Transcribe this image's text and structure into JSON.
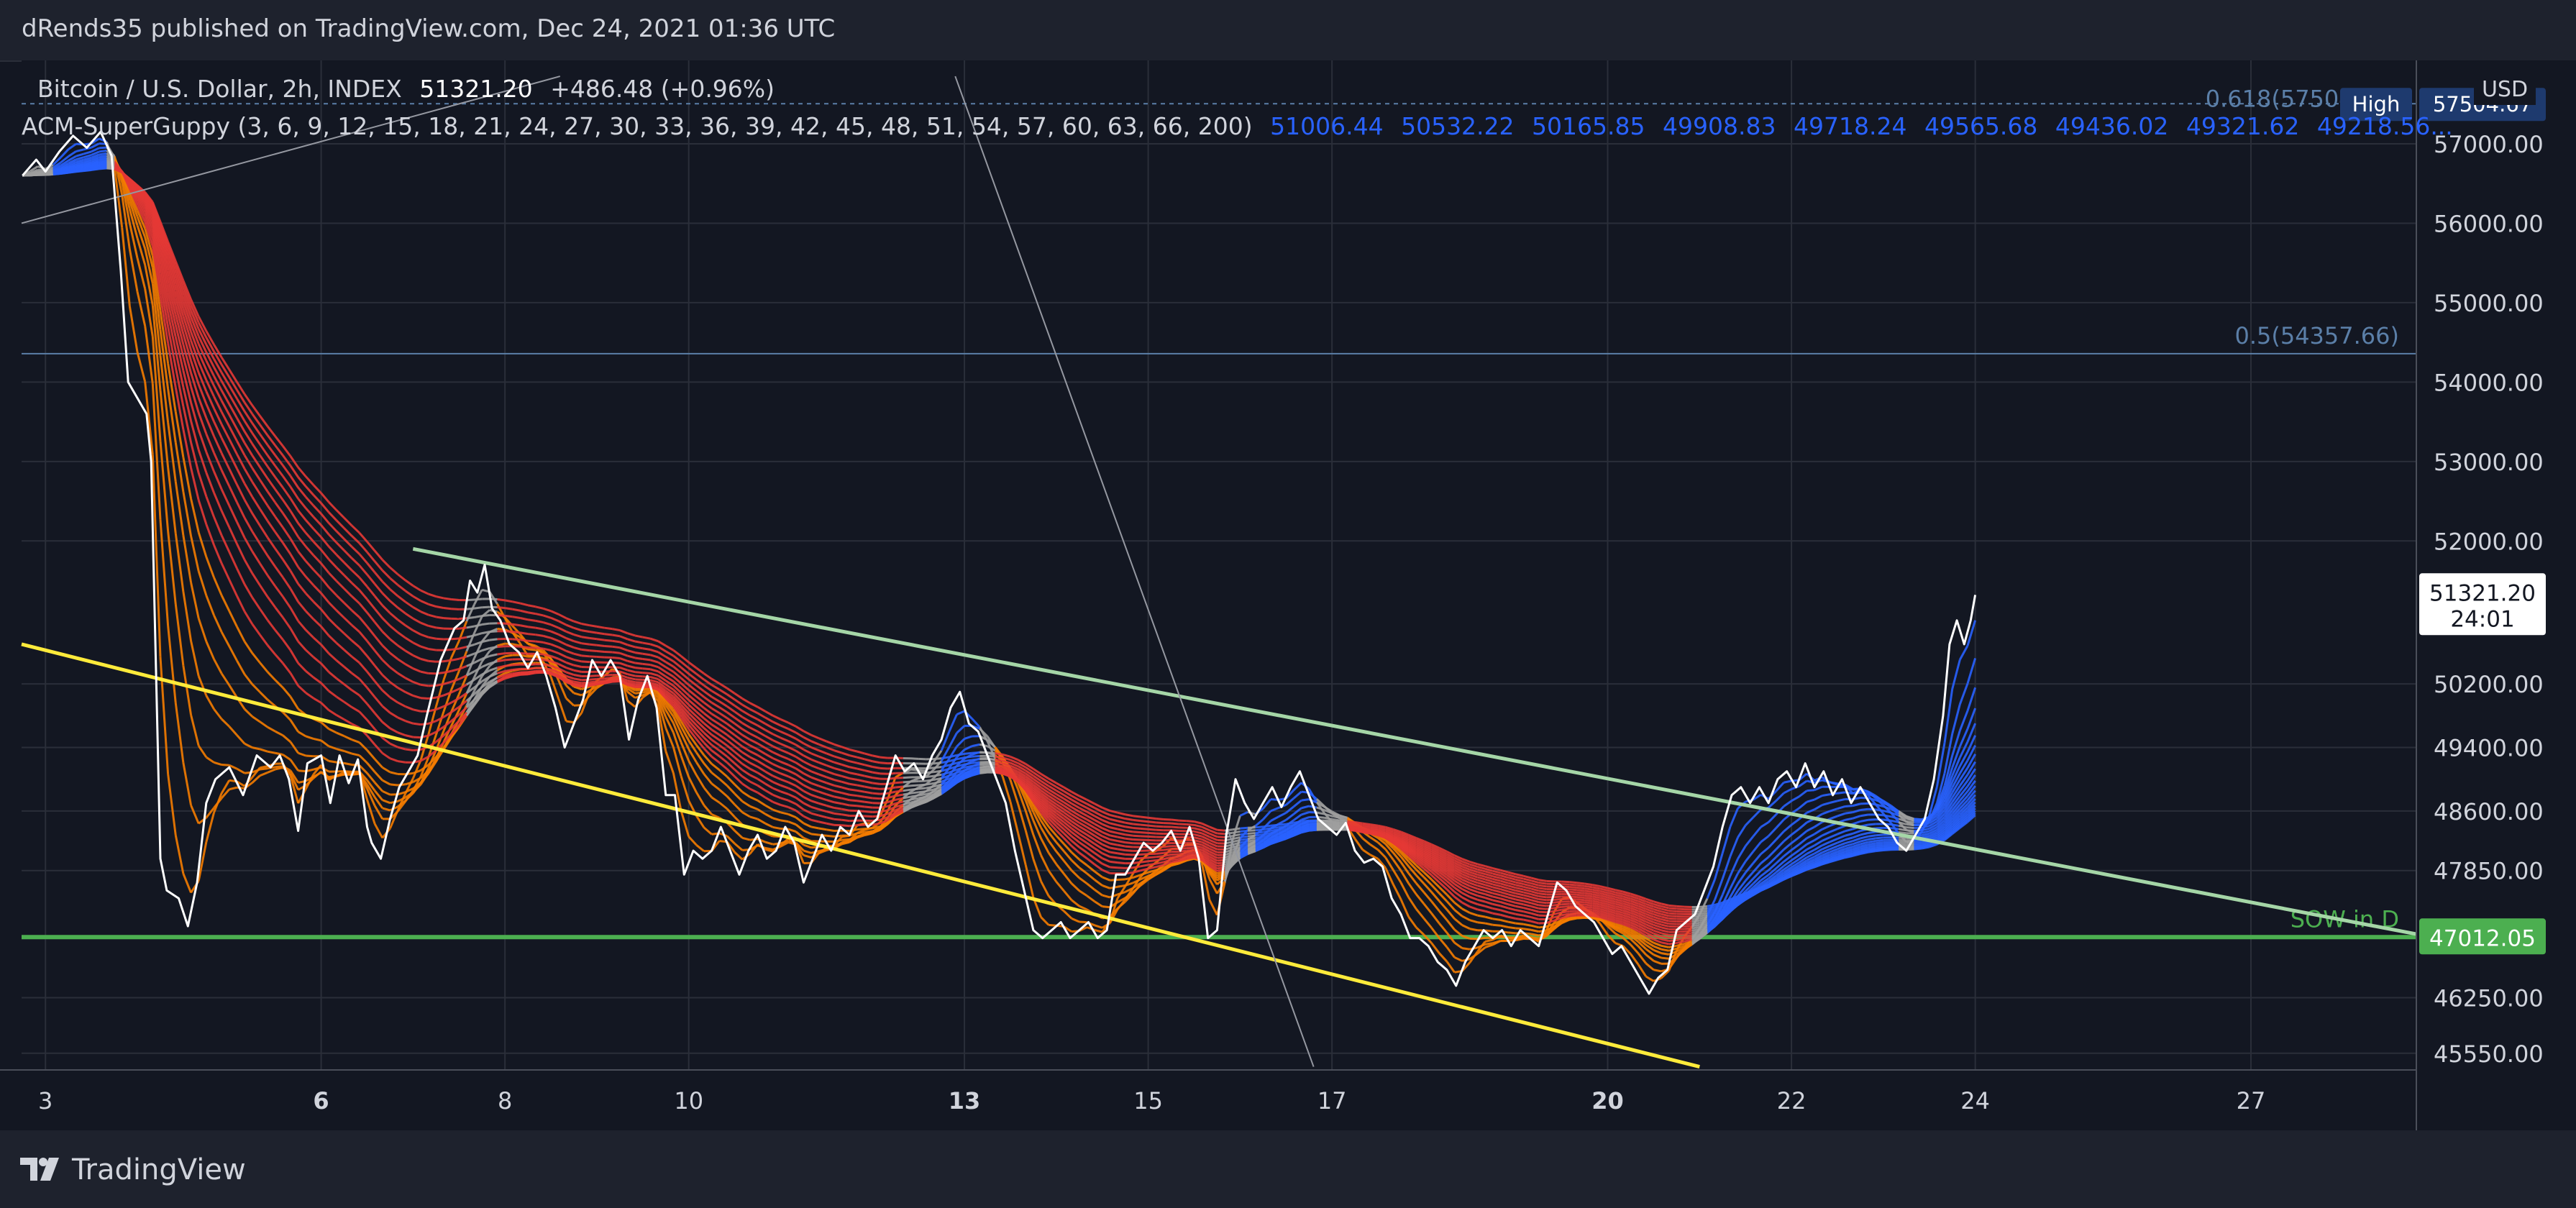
{
  "header": {
    "published": "dRends35 published on TradingView.com, Dec 24, 2021 01:36 UTC"
  },
  "legend": {
    "symbol": "Bitcoin / U.S. Dollar, 2h, INDEX",
    "last": "51321.20",
    "change": "+486.48 (+0.96%)",
    "indicator": "ACM-SuperGuppy (3, 6, 9, 12, 15, 18, 21, 24, 27, 30, 33, 36, 39, 42, 45, 48, 51, 54, 57, 60, 63, 66, 200)",
    "guppy_values": [
      "51006.44",
      "50532.22",
      "50165.85",
      "49908.83",
      "49718.24",
      "49565.68",
      "49436.02",
      "49321.62",
      "49218.56..."
    ]
  },
  "footer": {
    "brand": "TradingView"
  },
  "colors": {
    "background": "#131722",
    "grid": "#2a2e39",
    "price": "#ffffff",
    "support": "#4caf50",
    "resistance": "#a5d6a7",
    "lower_trend": "#ffeb3b",
    "fib": "#5b7fa8",
    "ribbon_bear": "#e53935",
    "ribbon_fast": "#f57c00",
    "ribbon_neutral": "#9e9e9e",
    "ribbon_bull": "#2962ff"
  },
  "chart_data": {
    "type": "line",
    "xlabel": "",
    "ylabel": "",
    "currency": "USD",
    "x_ticks": [
      {
        "day": 3,
        "label": "3",
        "bold": false
      },
      {
        "day": 6,
        "label": "6",
        "bold": true
      },
      {
        "day": 8,
        "label": "8",
        "bold": false
      },
      {
        "day": 10,
        "label": "10",
        "bold": false
      },
      {
        "day": 13,
        "label": "13",
        "bold": true
      },
      {
        "day": 15,
        "label": "15",
        "bold": false
      },
      {
        "day": 17,
        "label": "17",
        "bold": false
      },
      {
        "day": 20,
        "label": "20",
        "bold": true
      },
      {
        "day": 22,
        "label": "22",
        "bold": false
      },
      {
        "day": 24,
        "label": "24",
        "bold": false
      },
      {
        "day": 27,
        "label": "27",
        "bold": false
      }
    ],
    "y_ticks": [
      45550,
      46250,
      47850,
      48600,
      49400,
      50200,
      52000,
      53000,
      54000,
      55000,
      56000,
      57000
    ],
    "xlim": [
      2.74,
      28.8
    ],
    "ylim": [
      45340,
      58050
    ],
    "price_series": [
      [
        2.75,
        56600
      ],
      [
        2.9,
        56800
      ],
      [
        3.0,
        56650
      ],
      [
        3.15,
        56900
      ],
      [
        3.3,
        57100
      ],
      [
        3.45,
        56950
      ],
      [
        3.6,
        57150
      ],
      [
        3.72,
        56850
      ],
      [
        3.82,
        55400
      ],
      [
        3.9,
        54000
      ],
      [
        4.0,
        53800
      ],
      [
        4.1,
        53600
      ],
      [
        4.15,
        53000
      ],
      [
        4.25,
        48000
      ],
      [
        4.32,
        47600
      ],
      [
        4.45,
        47500
      ],
      [
        4.55,
        47150
      ],
      [
        4.65,
        47700
      ],
      [
        4.75,
        48700
      ],
      [
        4.85,
        49000
      ],
      [
        5.0,
        49150
      ],
      [
        5.15,
        48800
      ],
      [
        5.3,
        49300
      ],
      [
        5.45,
        49150
      ],
      [
        5.55,
        49300
      ],
      [
        5.65,
        49000
      ],
      [
        5.75,
        48350
      ],
      [
        5.85,
        49200
      ],
      [
        6.0,
        49300
      ],
      [
        6.1,
        48700
      ],
      [
        6.2,
        49300
      ],
      [
        6.3,
        48950
      ],
      [
        6.4,
        49250
      ],
      [
        6.5,
        48400
      ],
      [
        6.55,
        48200
      ],
      [
        6.65,
        48000
      ],
      [
        6.75,
        48500
      ],
      [
        6.85,
        48900
      ],
      [
        6.95,
        49100
      ],
      [
        7.05,
        49300
      ],
      [
        7.15,
        49800
      ],
      [
        7.3,
        50500
      ],
      [
        7.45,
        50900
      ],
      [
        7.55,
        51000
      ],
      [
        7.62,
        51500
      ],
      [
        7.7,
        51350
      ],
      [
        7.78,
        51700
      ],
      [
        7.86,
        51150
      ],
      [
        7.95,
        51000
      ],
      [
        8.05,
        50700
      ],
      [
        8.15,
        50600
      ],
      [
        8.25,
        50400
      ],
      [
        8.35,
        50600
      ],
      [
        8.45,
        50300
      ],
      [
        8.55,
        49900
      ],
      [
        8.65,
        49400
      ],
      [
        8.75,
        49700
      ],
      [
        8.85,
        50000
      ],
      [
        8.95,
        50500
      ],
      [
        9.05,
        50300
      ],
      [
        9.15,
        50500
      ],
      [
        9.25,
        50300
      ],
      [
        9.35,
        49500
      ],
      [
        9.45,
        50000
      ],
      [
        9.55,
        50300
      ],
      [
        9.65,
        49900
      ],
      [
        9.75,
        48800
      ],
      [
        9.85,
        48800
      ],
      [
        9.95,
        47800
      ],
      [
        10.05,
        48100
      ],
      [
        10.15,
        48000
      ],
      [
        10.25,
        48100
      ],
      [
        10.35,
        48400
      ],
      [
        10.45,
        48100
      ],
      [
        10.55,
        47800
      ],
      [
        10.65,
        48100
      ],
      [
        10.75,
        48300
      ],
      [
        10.85,
        48000
      ],
      [
        10.95,
        48100
      ],
      [
        11.05,
        48400
      ],
      [
        11.15,
        48200
      ],
      [
        11.25,
        47700
      ],
      [
        11.35,
        48000
      ],
      [
        11.45,
        48300
      ],
      [
        11.55,
        48100
      ],
      [
        11.65,
        48400
      ],
      [
        11.75,
        48300
      ],
      [
        11.85,
        48600
      ],
      [
        11.95,
        48400
      ],
      [
        12.05,
        48500
      ],
      [
        12.15,
        48900
      ],
      [
        12.25,
        49300
      ],
      [
        12.35,
        49100
      ],
      [
        12.45,
        49200
      ],
      [
        12.55,
        49000
      ],
      [
        12.65,
        49300
      ],
      [
        12.75,
        49500
      ],
      [
        12.85,
        49900
      ],
      [
        12.95,
        50100
      ],
      [
        13.05,
        49700
      ],
      [
        13.15,
        49600
      ],
      [
        13.25,
        49300
      ],
      [
        13.35,
        49000
      ],
      [
        13.45,
        48700
      ],
      [
        13.55,
        48100
      ],
      [
        13.65,
        47600
      ],
      [
        13.75,
        47100
      ],
      [
        13.85,
        47000
      ],
      [
        13.95,
        47100
      ],
      [
        14.05,
        47200
      ],
      [
        14.15,
        47000
      ],
      [
        14.25,
        47100
      ],
      [
        14.35,
        47200
      ],
      [
        14.45,
        47000
      ],
      [
        14.55,
        47100
      ],
      [
        14.65,
        47800
      ],
      [
        14.75,
        47800
      ],
      [
        14.85,
        48000
      ],
      [
        14.95,
        48200
      ],
      [
        15.05,
        48100
      ],
      [
        15.15,
        48200
      ],
      [
        15.25,
        48350
      ],
      [
        15.35,
        48100
      ],
      [
        15.45,
        48400
      ],
      [
        15.55,
        48000
      ],
      [
        15.65,
        47000
      ],
      [
        15.75,
        47100
      ],
      [
        15.85,
        48300
      ],
      [
        15.95,
        49000
      ],
      [
        16.05,
        48700
      ],
      [
        16.15,
        48500
      ],
      [
        16.25,
        48700
      ],
      [
        16.35,
        48900
      ],
      [
        16.45,
        48650
      ],
      [
        16.55,
        48900
      ],
      [
        16.65,
        49100
      ],
      [
        16.75,
        48800
      ],
      [
        16.85,
        48500
      ],
      [
        16.95,
        48400
      ],
      [
        17.05,
        48300
      ],
      [
        17.15,
        48450
      ],
      [
        17.25,
        48100
      ],
      [
        17.35,
        47950
      ],
      [
        17.45,
        48000
      ],
      [
        17.55,
        47900
      ],
      [
        17.65,
        47500
      ],
      [
        17.75,
        47300
      ],
      [
        17.85,
        47000
      ],
      [
        17.95,
        47000
      ],
      [
        18.05,
        46900
      ],
      [
        18.15,
        46700
      ],
      [
        18.25,
        46600
      ],
      [
        18.35,
        46400
      ],
      [
        18.45,
        46700
      ],
      [
        18.55,
        46900
      ],
      [
        18.65,
        47100
      ],
      [
        18.75,
        47000
      ],
      [
        18.85,
        47100
      ],
      [
        18.95,
        46900
      ],
      [
        19.05,
        47100
      ],
      [
        19.15,
        47000
      ],
      [
        19.25,
        46900
      ],
      [
        19.35,
        47300
      ],
      [
        19.45,
        47700
      ],
      [
        19.55,
        47600
      ],
      [
        19.65,
        47400
      ],
      [
        19.75,
        47300
      ],
      [
        19.85,
        47200
      ],
      [
        19.95,
        47000
      ],
      [
        20.05,
        46800
      ],
      [
        20.15,
        46900
      ],
      [
        20.25,
        46700
      ],
      [
        20.35,
        46500
      ],
      [
        20.45,
        46300
      ],
      [
        20.55,
        46500
      ],
      [
        20.65,
        46600
      ],
      [
        20.75,
        47100
      ],
      [
        20.85,
        47200
      ],
      [
        20.95,
        47300
      ],
      [
        21.05,
        47600
      ],
      [
        21.15,
        47900
      ],
      [
        21.25,
        48400
      ],
      [
        21.35,
        48800
      ],
      [
        21.45,
        48900
      ],
      [
        21.55,
        48700
      ],
      [
        21.65,
        48900
      ],
      [
        21.75,
        48700
      ],
      [
        21.85,
        49000
      ],
      [
        21.95,
        49100
      ],
      [
        22.05,
        48900
      ],
      [
        22.15,
        49200
      ],
      [
        22.25,
        48900
      ],
      [
        22.35,
        49100
      ],
      [
        22.45,
        48800
      ],
      [
        22.55,
        49000
      ],
      [
        22.65,
        48700
      ],
      [
        22.75,
        48900
      ],
      [
        22.85,
        48700
      ],
      [
        22.95,
        48500
      ],
      [
        23.05,
        48400
      ],
      [
        23.15,
        48200
      ],
      [
        23.25,
        48100
      ],
      [
        23.35,
        48300
      ],
      [
        23.45,
        48500
      ],
      [
        23.55,
        49000
      ],
      [
        23.65,
        49800
      ],
      [
        23.72,
        50700
      ],
      [
        23.8,
        51000
      ],
      [
        23.88,
        50700
      ],
      [
        23.95,
        51000
      ],
      [
        24.0,
        51320
      ]
    ],
    "guppy_ribbon": {
      "count": 22,
      "min_period": 3,
      "max_period": 66
    },
    "trend_lines": [
      {
        "name": "upper-trendline",
        "color": "#a5d6a7",
        "points": [
          [
            7.0,
            51900
          ],
          [
            28.8,
            47050
          ]
        ]
      },
      {
        "name": "lower-trendline",
        "color": "#ffeb3b",
        "points": [
          [
            2.74,
            50700
          ],
          [
            21.0,
            45380
          ]
        ]
      },
      {
        "name": "steep-line",
        "color": "#9598a1",
        "points": [
          [
            12.9,
            57850
          ],
          [
            16.8,
            45380
          ]
        ]
      },
      {
        "name": "left-line",
        "color": "#9598a1",
        "points": [
          [
            2.74,
            56000
          ],
          [
            8.6,
            57850
          ]
        ]
      }
    ],
    "horizontal_lines": [
      {
        "name": "fib-0.5",
        "label": "0.5(54357.66)",
        "value": 54357.66,
        "color": "#5b7fa8"
      },
      {
        "name": "fib-0.618",
        "label": "0.618(57504.18)",
        "value": 57504.18,
        "color": "#5b7fa8"
      },
      {
        "name": "support",
        "label": "SOW in D",
        "value": 47012.05,
        "color": "#4caf50"
      }
    ],
    "price_labels": [
      {
        "name": "last-price",
        "value": "51321.20",
        "time": "24:01",
        "y": 51321.2
      },
      {
        "name": "support-price",
        "value": "47012.05",
        "y": 47012.05
      },
      {
        "name": "high-price",
        "value": "57504.67",
        "tag": "High",
        "y": 57504.67
      }
    ]
  }
}
